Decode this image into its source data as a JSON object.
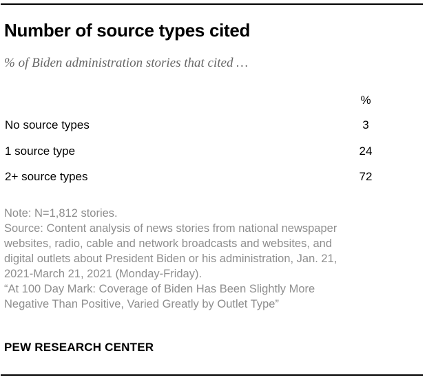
{
  "chart_data": {
    "type": "table",
    "title": "Number of source types cited",
    "subtitle": "% of Biden administration stories that cited …",
    "columns": [
      "",
      "%"
    ],
    "categories": [
      "No source types",
      "1 source type",
      "2+ source types"
    ],
    "values": [
      3,
      24,
      72
    ],
    "unit": "%"
  },
  "header": {
    "title": "Number of source types cited",
    "subtitle": "% of Biden administration stories that cited …"
  },
  "table": {
    "column_header": "%",
    "rows": [
      {
        "label": "No source types",
        "value": "3"
      },
      {
        "label": "1 source type",
        "value": "24"
      },
      {
        "label": "2+ source types",
        "value": "72"
      }
    ]
  },
  "notes": {
    "note_line": "Note: N=1,812 stories.",
    "source_lines": [
      "Source: Content analysis of news stories from national newspaper",
      "websites, radio, cable and network broadcasts and websites, and",
      "digital outlets about President Biden or his administration, Jan. 21,",
      "2021-March 21, 2021 (Monday-Friday)."
    ],
    "quote_lines": [
      "“At 100 Day Mark: Coverage of Biden Has Been Slightly More",
      "Negative Than Positive, Varied Greatly by Outlet Type”"
    ]
  },
  "footer": {
    "brand": "PEW RESEARCH CENTER"
  },
  "colors": {
    "title_text": "#000000",
    "subtitle_gray": "#666666",
    "notes_gray": "#8e8e8e",
    "rule_black": "#000000",
    "background": "#ffffff"
  }
}
